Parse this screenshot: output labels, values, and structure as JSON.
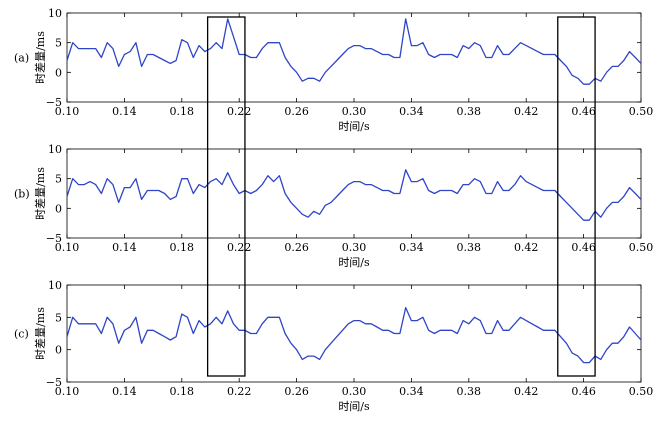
{
  "chart_data": {
    "type": "line",
    "line_color": "#2f45c8",
    "axis_color": "#000000",
    "highlight_boxes_x": [
      [
        0.198,
        0.224
      ],
      [
        0.442,
        0.468
      ]
    ],
    "panels": [
      {
        "panel_label": "(a)",
        "xlabel": "时间/s",
        "ylabel": "时差量/ms",
        "xlim": [
          0.1,
          0.5
        ],
        "ylim": [
          -5,
          10
        ],
        "xticks": [
          "0.10",
          "0.14",
          "0.18",
          "0.22",
          "0.26",
          "0.30",
          "0.34",
          "0.38",
          "0.42",
          "0.46",
          "0.50"
        ],
        "yticks": [
          "10",
          "5",
          "0",
          "−5"
        ],
        "x": [
          0.1,
          0.104,
          0.108,
          0.112,
          0.116,
          0.12,
          0.124,
          0.128,
          0.132,
          0.136,
          0.14,
          0.144,
          0.148,
          0.152,
          0.156,
          0.16,
          0.164,
          0.168,
          0.172,
          0.176,
          0.18,
          0.184,
          0.188,
          0.192,
          0.196,
          0.2,
          0.204,
          0.208,
          0.212,
          0.216,
          0.22,
          0.224,
          0.228,
          0.232,
          0.236,
          0.24,
          0.244,
          0.248,
          0.252,
          0.256,
          0.26,
          0.264,
          0.268,
          0.272,
          0.276,
          0.28,
          0.284,
          0.288,
          0.292,
          0.296,
          0.3,
          0.304,
          0.308,
          0.312,
          0.316,
          0.32,
          0.324,
          0.328,
          0.332,
          0.336,
          0.34,
          0.344,
          0.348,
          0.352,
          0.356,
          0.36,
          0.364,
          0.368,
          0.372,
          0.376,
          0.38,
          0.384,
          0.388,
          0.392,
          0.396,
          0.4,
          0.404,
          0.408,
          0.412,
          0.416,
          0.42,
          0.424,
          0.428,
          0.432,
          0.436,
          0.44,
          0.444,
          0.448,
          0.452,
          0.456,
          0.46,
          0.464,
          0.468,
          0.472,
          0.476,
          0.48,
          0.484,
          0.488,
          0.492,
          0.496,
          0.5
        ],
        "y": [
          2.0,
          5.0,
          4.0,
          4.0,
          4.0,
          4.0,
          2.5,
          5.0,
          4.0,
          1.0,
          3.0,
          3.5,
          5.0,
          1.0,
          3.0,
          3.0,
          2.5,
          2.0,
          1.5,
          2.0,
          5.5,
          5.0,
          2.5,
          4.5,
          3.5,
          4.0,
          5.0,
          4.0,
          9.0,
          6.0,
          3.0,
          3.0,
          2.5,
          2.5,
          4.0,
          5.0,
          5.0,
          5.0,
          2.5,
          1.0,
          0.0,
          -1.5,
          -1.0,
          -1.0,
          -1.5,
          0.0,
          1.0,
          2.0,
          3.0,
          4.0,
          4.5,
          4.5,
          4.0,
          4.0,
          3.5,
          3.0,
          3.0,
          2.5,
          2.5,
          9.0,
          4.5,
          4.5,
          5.0,
          3.0,
          2.5,
          3.0,
          3.0,
          3.0,
          2.5,
          4.5,
          4.0,
          5.0,
          4.5,
          2.5,
          2.5,
          4.5,
          3.0,
          3.0,
          4.0,
          5.0,
          4.5,
          4.0,
          3.5,
          3.0,
          3.0,
          3.0,
          2.0,
          1.0,
          -0.5,
          -1.0,
          -2.0,
          -2.0,
          -1.0,
          -1.5,
          0.0,
          1.0,
          1.0,
          2.0,
          3.5,
          2.5,
          1.5
        ]
      },
      {
        "panel_label": "(b)",
        "xlabel": "时间/s",
        "ylabel": "时差量/ms",
        "xlim": [
          0.1,
          0.5
        ],
        "ylim": [
          -5,
          10
        ],
        "xticks": [
          "0.10",
          "0.14",
          "0.18",
          "0.22",
          "0.26",
          "0.30",
          "0.34",
          "0.38",
          "0.42",
          "0.46",
          "0.50"
        ],
        "yticks": [
          "10",
          "5",
          "0",
          "−5"
        ],
        "x": [
          0.1,
          0.104,
          0.108,
          0.112,
          0.116,
          0.12,
          0.124,
          0.128,
          0.132,
          0.136,
          0.14,
          0.144,
          0.148,
          0.152,
          0.156,
          0.16,
          0.164,
          0.168,
          0.172,
          0.176,
          0.18,
          0.184,
          0.188,
          0.192,
          0.196,
          0.2,
          0.204,
          0.208,
          0.212,
          0.216,
          0.22,
          0.224,
          0.228,
          0.232,
          0.236,
          0.24,
          0.244,
          0.248,
          0.252,
          0.256,
          0.26,
          0.264,
          0.268,
          0.272,
          0.276,
          0.28,
          0.284,
          0.288,
          0.292,
          0.296,
          0.3,
          0.304,
          0.308,
          0.312,
          0.316,
          0.32,
          0.324,
          0.328,
          0.332,
          0.336,
          0.34,
          0.344,
          0.348,
          0.352,
          0.356,
          0.36,
          0.364,
          0.368,
          0.372,
          0.376,
          0.38,
          0.384,
          0.388,
          0.392,
          0.396,
          0.4,
          0.404,
          0.408,
          0.412,
          0.416,
          0.42,
          0.424,
          0.428,
          0.432,
          0.436,
          0.44,
          0.444,
          0.448,
          0.452,
          0.456,
          0.46,
          0.464,
          0.468,
          0.472,
          0.476,
          0.48,
          0.484,
          0.488,
          0.492,
          0.496,
          0.5
        ],
        "y": [
          2.0,
          5.0,
          4.0,
          4.0,
          4.5,
          4.0,
          2.5,
          5.0,
          4.0,
          1.0,
          3.5,
          3.5,
          5.0,
          1.5,
          3.0,
          3.0,
          3.0,
          2.5,
          1.5,
          2.0,
          5.0,
          5.0,
          2.5,
          4.0,
          3.5,
          4.5,
          5.0,
          4.0,
          6.0,
          4.0,
          2.5,
          3.0,
          2.5,
          3.0,
          4.0,
          5.5,
          4.5,
          5.5,
          2.5,
          1.0,
          0.0,
          -1.0,
          -1.5,
          -0.5,
          -1.0,
          0.5,
          1.0,
          2.0,
          3.0,
          4.0,
          4.5,
          4.5,
          4.0,
          4.0,
          3.5,
          3.0,
          3.0,
          2.5,
          2.5,
          6.5,
          4.5,
          4.5,
          5.0,
          3.0,
          2.5,
          3.0,
          3.0,
          3.0,
          2.5,
          4.0,
          4.0,
          5.0,
          4.5,
          2.5,
          2.5,
          4.5,
          3.0,
          3.0,
          4.0,
          5.5,
          4.5,
          4.0,
          3.5,
          3.0,
          3.0,
          3.0,
          2.0,
          1.0,
          0.0,
          -1.0,
          -2.0,
          -2.0,
          -0.5,
          -1.5,
          0.0,
          1.0,
          1.0,
          2.0,
          3.5,
          2.5,
          1.5
        ]
      },
      {
        "panel_label": "(c)",
        "xlabel": "时间/s",
        "ylabel": "时差量/ms",
        "xlim": [
          0.1,
          0.5
        ],
        "ylim": [
          -5,
          10
        ],
        "xticks": [
          "0.10",
          "0.14",
          "0.18",
          "0.22",
          "0.26",
          "0.30",
          "0.34",
          "0.38",
          "0.42",
          "0.46",
          "0.50"
        ],
        "yticks": [
          "10",
          "5",
          "0",
          "−5"
        ],
        "x": [
          0.1,
          0.104,
          0.108,
          0.112,
          0.116,
          0.12,
          0.124,
          0.128,
          0.132,
          0.136,
          0.14,
          0.144,
          0.148,
          0.152,
          0.156,
          0.16,
          0.164,
          0.168,
          0.172,
          0.176,
          0.18,
          0.184,
          0.188,
          0.192,
          0.196,
          0.2,
          0.204,
          0.208,
          0.212,
          0.216,
          0.22,
          0.224,
          0.228,
          0.232,
          0.236,
          0.24,
          0.244,
          0.248,
          0.252,
          0.256,
          0.26,
          0.264,
          0.268,
          0.272,
          0.276,
          0.28,
          0.284,
          0.288,
          0.292,
          0.296,
          0.3,
          0.304,
          0.308,
          0.312,
          0.316,
          0.32,
          0.324,
          0.328,
          0.332,
          0.336,
          0.34,
          0.344,
          0.348,
          0.352,
          0.356,
          0.36,
          0.364,
          0.368,
          0.372,
          0.376,
          0.38,
          0.384,
          0.388,
          0.392,
          0.396,
          0.4,
          0.404,
          0.408,
          0.412,
          0.416,
          0.42,
          0.424,
          0.428,
          0.432,
          0.436,
          0.44,
          0.444,
          0.448,
          0.452,
          0.456,
          0.46,
          0.464,
          0.468,
          0.472,
          0.476,
          0.48,
          0.484,
          0.488,
          0.492,
          0.496,
          0.5
        ],
        "y": [
          2.0,
          5.0,
          4.0,
          4.0,
          4.0,
          4.0,
          2.5,
          5.0,
          4.0,
          1.0,
          3.0,
          3.5,
          5.0,
          1.0,
          3.0,
          3.0,
          2.5,
          2.0,
          1.5,
          2.0,
          5.5,
          5.0,
          2.5,
          4.5,
          3.5,
          4.0,
          5.0,
          4.0,
          6.0,
          4.0,
          3.0,
          3.0,
          2.5,
          2.5,
          4.0,
          5.0,
          5.0,
          5.0,
          2.5,
          1.0,
          0.0,
          -1.5,
          -1.0,
          -1.0,
          -1.5,
          0.0,
          1.0,
          2.0,
          3.0,
          4.0,
          4.5,
          4.5,
          4.0,
          4.0,
          3.5,
          3.0,
          3.0,
          2.5,
          2.5,
          6.5,
          4.5,
          4.5,
          5.0,
          3.0,
          2.5,
          3.0,
          3.0,
          3.0,
          2.5,
          4.5,
          4.0,
          5.0,
          4.5,
          2.5,
          2.5,
          4.5,
          3.0,
          3.0,
          4.0,
          5.0,
          4.5,
          4.0,
          3.5,
          3.0,
          3.0,
          3.0,
          2.0,
          1.0,
          -0.5,
          -1.0,
          -2.0,
          -2.0,
          -1.0,
          -1.5,
          0.0,
          1.0,
          1.0,
          2.0,
          3.5,
          2.5,
          1.5
        ]
      }
    ]
  }
}
